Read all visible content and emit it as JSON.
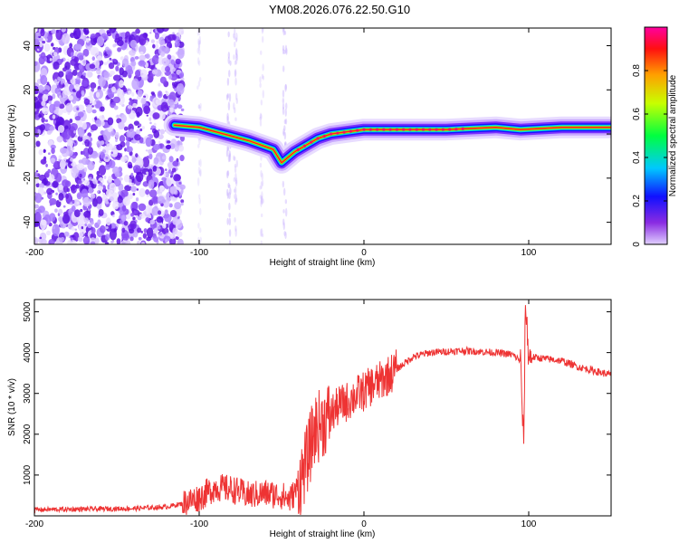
{
  "title": "YM08.2026.076.22.50.G10",
  "chart_data": [
    {
      "type": "heatmap",
      "xlabel": "Height of straight line (km)",
      "ylabel": "Frequency (Hz)",
      "xlim": [
        -200,
        150
      ],
      "ylim": [
        -50,
        48
      ],
      "xticks": [
        -200,
        -100,
        0,
        100
      ],
      "yticks": [
        -40,
        -20,
        0,
        20,
        40
      ],
      "colorbar": {
        "label": "Normalized spectral amplitude",
        "range": [
          0,
          1
        ],
        "ticks": [
          0,
          0.2,
          0.4,
          0.6,
          0.8
        ]
      },
      "ridge": [
        {
          "x": -115,
          "y": 4
        },
        {
          "x": -100,
          "y": 3
        },
        {
          "x": -85,
          "y": 0
        },
        {
          "x": -70,
          "y": -3
        },
        {
          "x": -55,
          "y": -7
        },
        {
          "x": -50,
          "y": -13
        },
        {
          "x": -42,
          "y": -8
        },
        {
          "x": -35,
          "y": -5
        },
        {
          "x": -28,
          "y": -2
        },
        {
          "x": -20,
          "y": 0
        },
        {
          "x": -10,
          "y": 1
        },
        {
          "x": 0,
          "y": 2
        },
        {
          "x": 20,
          "y": 2
        },
        {
          "x": 50,
          "y": 2
        },
        {
          "x": 80,
          "y": 3
        },
        {
          "x": 95,
          "y": 2
        },
        {
          "x": 120,
          "y": 3
        },
        {
          "x": 150,
          "y": 3
        }
      ]
    },
    {
      "type": "line",
      "xlabel": "Height of straight line (km)",
      "ylabel": "SNR (10 * v/v)",
      "xlim": [
        -200,
        150
      ],
      "ylim": [
        0,
        5300
      ],
      "xticks": [
        -200,
        -100,
        0,
        100
      ],
      "yticks": [
        1000,
        2000,
        3000,
        4000,
        5000
      ],
      "color": "#ee3333",
      "series": [
        {
          "points": [
            [
              -200,
              150
            ],
            [
              -180,
              160
            ],
            [
              -160,
              170
            ],
            [
              -140,
              180
            ],
            [
              -120,
              220
            ],
            [
              -110,
              300
            ],
            [
              -100,
              450
            ],
            [
              -90,
              700
            ],
            [
              -80,
              650
            ],
            [
              -70,
              500
            ],
            [
              -60,
              550
            ],
            [
              -50,
              500
            ],
            [
              -45,
              400
            ],
            [
              -40,
              700
            ],
            [
              -35,
              1300
            ],
            [
              -30,
              2100
            ],
            [
              -25,
              2300
            ],
            [
              -20,
              2500
            ],
            [
              -15,
              2700
            ],
            [
              -10,
              2800
            ],
            [
              -5,
              2950
            ],
            [
              0,
              3050
            ],
            [
              5,
              3200
            ],
            [
              10,
              3300
            ],
            [
              15,
              3450
            ],
            [
              20,
              3600
            ],
            [
              30,
              3900
            ],
            [
              40,
              4000
            ],
            [
              60,
              4050
            ],
            [
              80,
              4000
            ],
            [
              90,
              3950
            ],
            [
              95,
              3800
            ],
            [
              97,
              1600
            ],
            [
              98,
              5250
            ],
            [
              100,
              3900
            ],
            [
              110,
              3850
            ],
            [
              120,
              3800
            ],
            [
              130,
              3650
            ],
            [
              140,
              3550
            ],
            [
              150,
              3450
            ]
          ]
        }
      ]
    }
  ]
}
